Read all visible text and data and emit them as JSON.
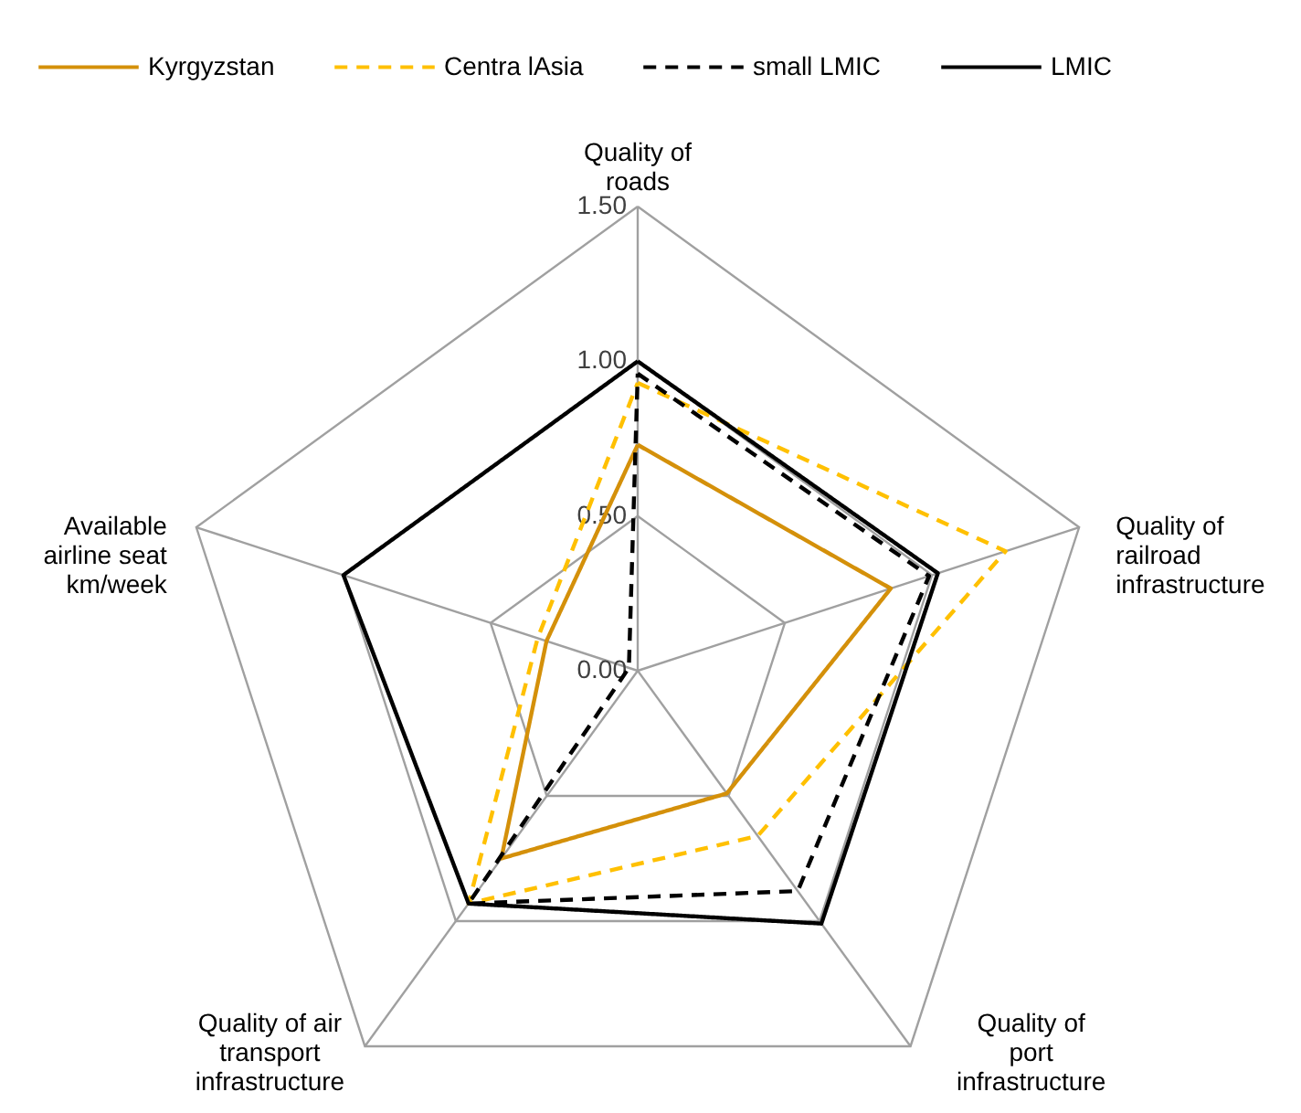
{
  "chart_data": {
    "type": "radar",
    "categories": [
      "Quality of\nroads",
      "Quality of\nrailroad\ninfrastructure",
      "Quality of\nport\ninfrastructure",
      "Quality of air\ntransport\ninfrastructure",
      "Available\nairline seat\nkm/week"
    ],
    "ylim": [
      0,
      1.5
    ],
    "yticks": [
      {
        "value": 0,
        "label": "0.00"
      },
      {
        "value": 0.5,
        "label": "0.50"
      },
      {
        "value": 1.0,
        "label": "1.00"
      },
      {
        "value": 1.5,
        "label": "1.50"
      }
    ],
    "grid": true,
    "legend": "top",
    "series": [
      {
        "name": "Kyrgyzstan",
        "color": "#d4900a",
        "line_style": "solid",
        "values": [
          0.73,
          0.86,
          0.49,
          0.75,
          0.31
        ]
      },
      {
        "name": "Centra lAsia",
        "color": "#ffc000",
        "line_style": "dashed",
        "values": [
          0.93,
          1.25,
          0.66,
          0.93,
          0.34
        ]
      },
      {
        "name": "small LMIC",
        "color": "#000000",
        "line_style": "dashed",
        "values": [
          0.96,
          0.99,
          0.88,
          0.93,
          0.03
        ]
      },
      {
        "name": "LMIC",
        "color": "#000000",
        "line_style": "solid",
        "values": [
          1.0,
          1.02,
          1.01,
          0.93,
          1.0
        ]
      }
    ]
  }
}
